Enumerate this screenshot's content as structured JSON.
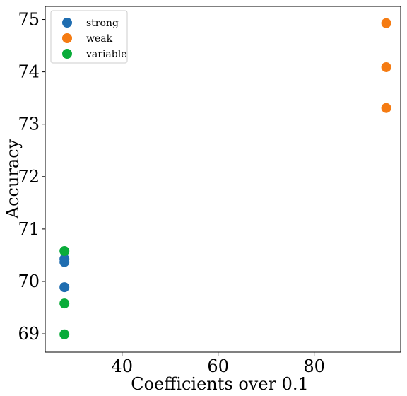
{
  "chart_data": {
    "type": "scatter",
    "xlabel": "Coefficients over 0.1",
    "ylabel": "Accuracy",
    "xlim": [
      24,
      98
    ],
    "ylim": [
      68.65,
      75.25
    ],
    "xticks": [
      40,
      60,
      80
    ],
    "yticks": [
      69,
      70,
      71,
      72,
      73,
      74,
      75
    ],
    "grid": false,
    "legend_position": "upper-left",
    "series": [
      {
        "name": "strong",
        "color": "#1f6db0",
        "points": [
          [
            28,
            70.43
          ],
          [
            28,
            70.37
          ],
          [
            28,
            69.89
          ]
        ]
      },
      {
        "name": "weak",
        "color": "#f57b12",
        "points": [
          [
            95,
            74.93
          ],
          [
            95,
            74.09
          ],
          [
            95,
            73.31
          ]
        ]
      },
      {
        "name": "variable",
        "color": "#0aac3a",
        "points": [
          [
            28,
            70.58
          ],
          [
            28,
            69.58
          ],
          [
            28,
            68.99
          ]
        ]
      }
    ]
  }
}
